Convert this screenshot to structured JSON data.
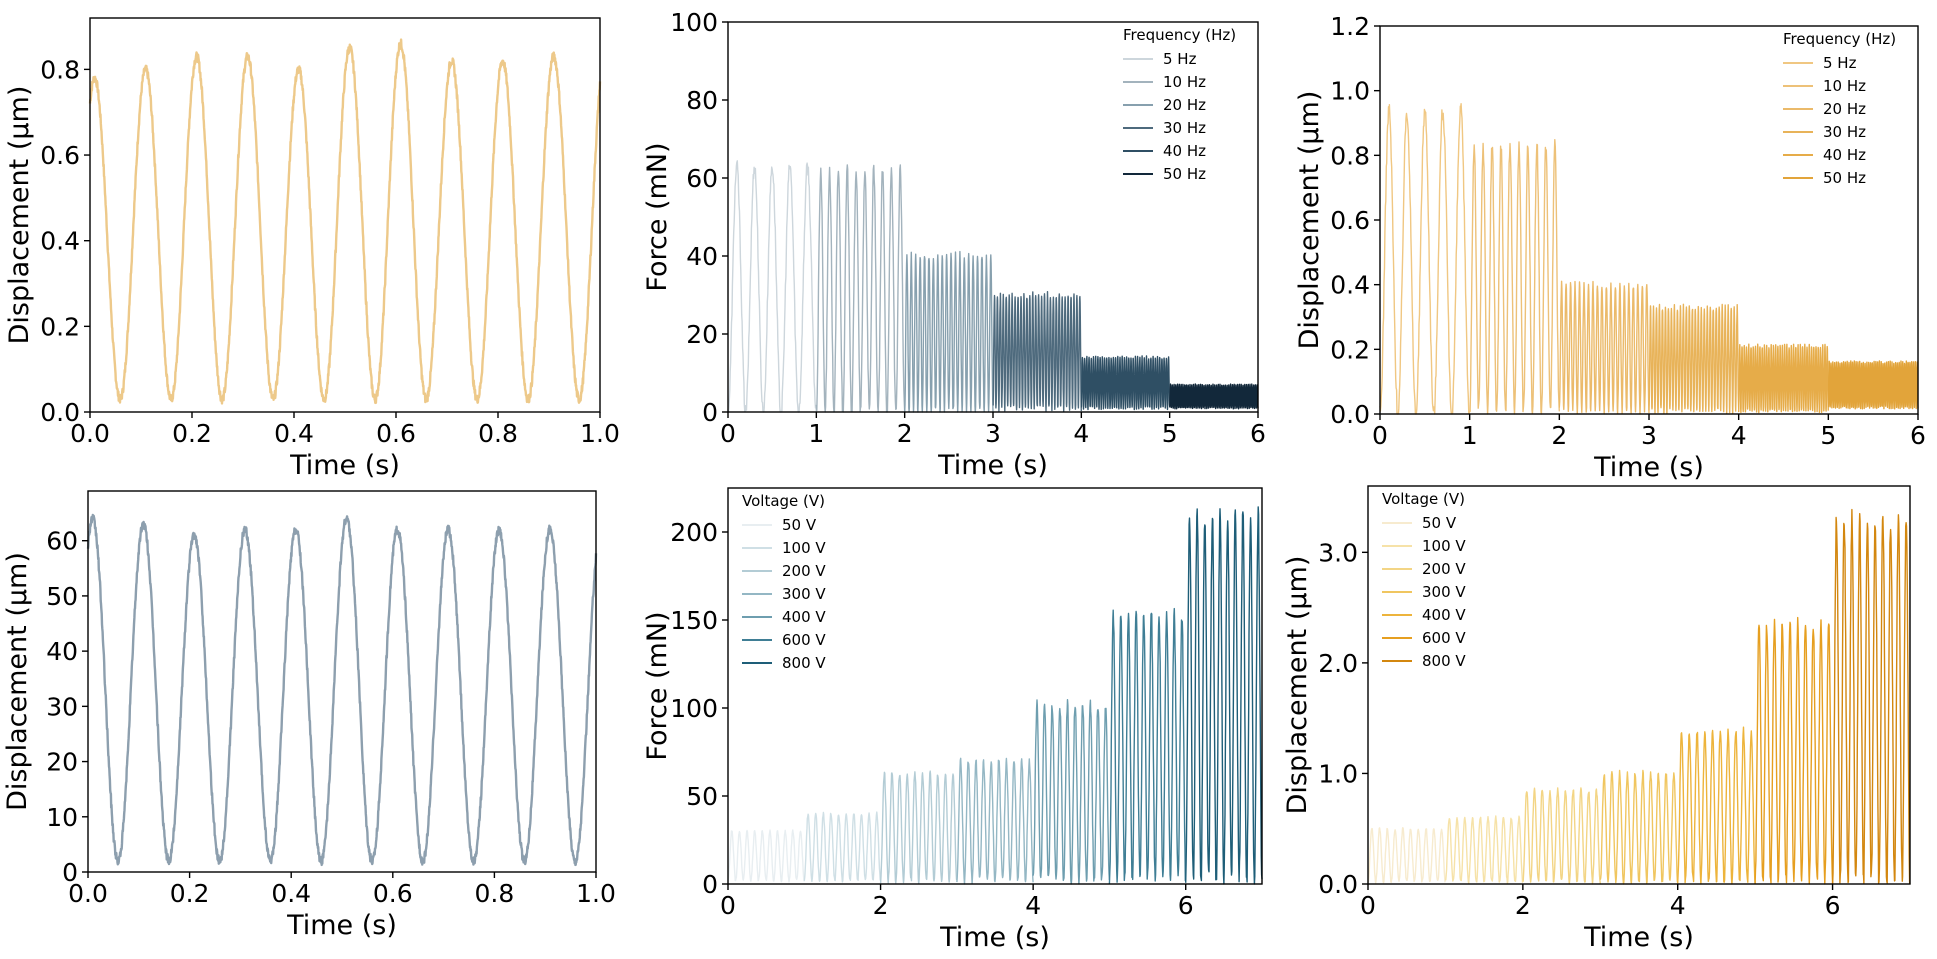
{
  "chart_data": [
    {
      "type": "line",
      "xlabel": "Time (s)",
      "ylabel": "Displacement (μm)",
      "xlim": [
        0,
        1.0
      ],
      "ylim": [
        0,
        0.92
      ],
      "xticks": [
        "0.0",
        "0.2",
        "0.4",
        "0.6",
        "0.8",
        "1.0"
      ],
      "yticks": [
        "0.0",
        "0.2",
        "0.4",
        "0.6",
        "0.8"
      ],
      "grid": false,
      "series": [
        {
          "color": "#EDC98A",
          "frequency_hz": 10,
          "baseline": 0.03,
          "peaks": [
            0.78,
            0.8,
            0.83,
            0.83,
            0.8,
            0.85,
            0.86,
            0.82,
            0.82,
            0.83
          ]
        }
      ]
    },
    {
      "type": "line",
      "xlabel": "Time (s)",
      "ylabel": "Force (mN)",
      "xlim": [
        0,
        6
      ],
      "ylim": [
        0,
        100
      ],
      "xticks": [
        "0",
        "1",
        "2",
        "3",
        "4",
        "5",
        "6"
      ],
      "yticks": [
        "0",
        "20",
        "40",
        "60",
        "80",
        "100"
      ],
      "grid": false,
      "legend": {
        "title": "Frequency (Hz)",
        "position": "upper-right"
      },
      "series": [
        {
          "name": "5 Hz",
          "color": "#CDD6DC",
          "x_range": [
            0,
            1
          ],
          "frequency_hz": 5,
          "peak": 63,
          "min": 0
        },
        {
          "name": "10 Hz",
          "color": "#A3B3BD",
          "x_range": [
            1,
            2
          ],
          "frequency_hz": 10,
          "peak": 62,
          "min": 0
        },
        {
          "name": "20 Hz",
          "color": "#87A0AE",
          "x_range": [
            2,
            3
          ],
          "frequency_hz": 20,
          "peak": 40,
          "min": 0
        },
        {
          "name": "30 Hz",
          "color": "#4E6A7D",
          "x_range": [
            3,
            4
          ],
          "frequency_hz": 30,
          "peak": 30,
          "min": 1
        },
        {
          "name": "40 Hz",
          "color": "#2F4F64",
          "x_range": [
            4,
            5
          ],
          "frequency_hz": 40,
          "peak": 14,
          "min": 1
        },
        {
          "name": "50 Hz",
          "color": "#12283A",
          "x_range": [
            5,
            6
          ],
          "frequency_hz": 50,
          "peak": 7,
          "min": 1
        }
      ]
    },
    {
      "type": "line",
      "xlabel": "Time (s)",
      "ylabel": "Displacement (μm)",
      "xlim": [
        0,
        6
      ],
      "ylim": [
        0,
        1.2
      ],
      "xticks": [
        "0",
        "1",
        "2",
        "3",
        "4",
        "5",
        "6"
      ],
      "yticks": [
        "0.0",
        "0.2",
        "0.4",
        "0.6",
        "0.8",
        "1.0",
        "1.2"
      ],
      "grid": false,
      "legend": {
        "title": "Frequency (Hz)",
        "position": "upper-right"
      },
      "series": [
        {
          "name": "5 Hz",
          "color": "#F0C782",
          "x_range": [
            0,
            1
          ],
          "frequency_hz": 5,
          "peak": 0.94,
          "min": 0
        },
        {
          "name": "10 Hz",
          "color": "#EDC178",
          "x_range": [
            1,
            2
          ],
          "frequency_hz": 10,
          "peak": 0.83,
          "min": 0.01
        },
        {
          "name": "20 Hz",
          "color": "#EBBA6A",
          "x_range": [
            2,
            3
          ],
          "frequency_hz": 20,
          "peak": 0.4,
          "min": 0.01
        },
        {
          "name": "30 Hz",
          "color": "#E8B359",
          "x_range": [
            3,
            4
          ],
          "frequency_hz": 30,
          "peak": 0.33,
          "min": 0.01
        },
        {
          "name": "40 Hz",
          "color": "#E6AC49",
          "x_range": [
            4,
            5
          ],
          "frequency_hz": 40,
          "peak": 0.21,
          "min": 0.01
        },
        {
          "name": "50 Hz",
          "color": "#E2A43A",
          "x_range": [
            5,
            6
          ],
          "frequency_hz": 50,
          "peak": 0.16,
          "min": 0.02
        }
      ]
    },
    {
      "type": "line",
      "xlabel": "Time (s)",
      "ylabel": "Displacement (μm)",
      "xlim": [
        0,
        1.0
      ],
      "ylim": [
        0,
        69
      ],
      "xticks": [
        "0.0",
        "0.2",
        "0.4",
        "0.6",
        "0.8",
        "1.0"
      ],
      "yticks": [
        "0",
        "10",
        "20",
        "30",
        "40",
        "50",
        "60"
      ],
      "grid": false,
      "series": [
        {
          "color": "#8D9FAE",
          "frequency_hz": 10,
          "baseline": 2,
          "peaks": [
            64,
            63,
            61,
            62,
            62,
            64,
            62,
            62,
            62,
            62
          ]
        }
      ]
    },
    {
      "type": "line",
      "xlabel": "Time (s)",
      "ylabel": "Force (mN)",
      "xlim": [
        0,
        7
      ],
      "ylim": [
        0,
        225
      ],
      "xticks": [
        "0",
        "2",
        "4",
        "6"
      ],
      "yticks": [
        "0",
        "50",
        "100",
        "150",
        "200"
      ],
      "grid": false,
      "legend": {
        "title": "Voltage (V)",
        "position": "upper-left"
      },
      "series": [
        {
          "name": "50 V",
          "color": "#E8EEF1",
          "x_range": [
            0,
            1
          ],
          "frequency_hz": 10,
          "peak": 30,
          "min": 2
        },
        {
          "name": "100 V",
          "color": "#CFDFE5",
          "x_range": [
            1,
            2
          ],
          "frequency_hz": 10,
          "peak": 40,
          "min": 2
        },
        {
          "name": "200 V",
          "color": "#B3CCD5",
          "x_range": [
            2,
            3
          ],
          "frequency_hz": 10,
          "peak": 63,
          "min": 2
        },
        {
          "name": "300 V",
          "color": "#94B7C4",
          "x_range": [
            3,
            4
          ],
          "frequency_hz": 10,
          "peak": 70,
          "min": 2
        },
        {
          "name": "400 V",
          "color": "#6E9EAF",
          "x_range": [
            4,
            5
          ],
          "frequency_hz": 10,
          "peak": 102,
          "min": 2
        },
        {
          "name": "600 V",
          "color": "#3F7E95",
          "x_range": [
            5,
            6
          ],
          "frequency_hz": 10,
          "peak": 153,
          "min": 2
        },
        {
          "name": "800 V",
          "color": "#1E5E78",
          "x_range": [
            6,
            7
          ],
          "frequency_hz": 10,
          "peak": 210,
          "min": 2
        }
      ]
    },
    {
      "type": "line",
      "xlabel": "Time (s)",
      "ylabel": "Displacement (μm)",
      "xlim": [
        0,
        7
      ],
      "ylim": [
        0,
        3.6
      ],
      "xticks": [
        "0",
        "2",
        "4",
        "6"
      ],
      "yticks": [
        "0.0",
        "1.0",
        "2.0",
        "3.0"
      ],
      "grid": false,
      "legend": {
        "title": "Voltage (V)",
        "position": "upper-left"
      },
      "series": [
        {
          "name": "50 V",
          "color": "#F7EBCF",
          "x_range": [
            0,
            1
          ],
          "frequency_hz": 10,
          "peak": 0.5,
          "min": 0.02
        },
        {
          "name": "100 V",
          "color": "#F6E2A8",
          "x_range": [
            1,
            2
          ],
          "frequency_hz": 10,
          "peak": 0.6,
          "min": 0.02
        },
        {
          "name": "200 V",
          "color": "#F3D585",
          "x_range": [
            2,
            3
          ],
          "frequency_hz": 10,
          "peak": 0.85,
          "min": 0.02
        },
        {
          "name": "300 V",
          "color": "#F0C660",
          "x_range": [
            3,
            4
          ],
          "frequency_hz": 10,
          "peak": 1.0,
          "min": 0.02
        },
        {
          "name": "400 V",
          "color": "#EDB43C",
          "x_range": [
            4,
            5
          ],
          "frequency_hz": 10,
          "peak": 1.38,
          "min": 0.02
        },
        {
          "name": "600 V",
          "color": "#E69F20",
          "x_range": [
            5,
            6
          ],
          "frequency_hz": 10,
          "peak": 2.35,
          "min": 0.02
        },
        {
          "name": "800 V",
          "color": "#D3870F",
          "x_range": [
            6,
            7
          ],
          "frequency_hz": 10,
          "peak": 3.3,
          "min": 0.02
        }
      ]
    }
  ]
}
